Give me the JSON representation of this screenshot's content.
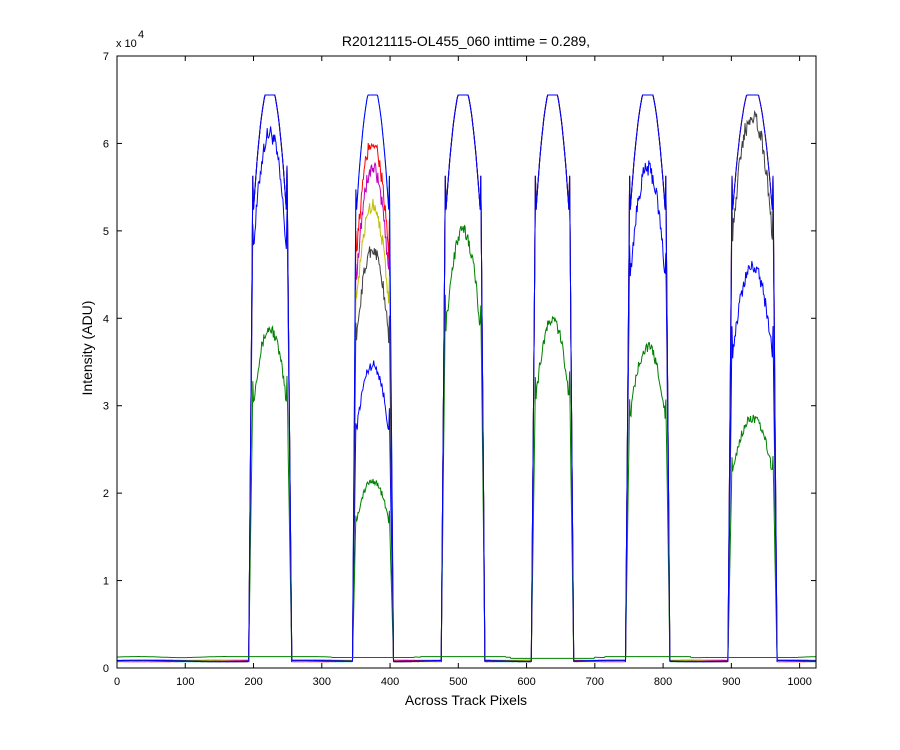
{
  "chart_data": {
    "type": "line",
    "title": "R20121115-OL455_060 inttime = 0.289,",
    "xlabel": "Across Track Pixels",
    "ylabel": "Intensity (ADU)",
    "xlim": [
      0,
      1024
    ],
    "ylim": [
      0,
      70000
    ],
    "y_exponent_label": "x 10",
    "y_exponent_power": "4",
    "x_ticks": [
      0,
      100,
      200,
      300,
      400,
      500,
      600,
      700,
      800,
      900,
      1000
    ],
    "x_tick_labels": [
      "0",
      "100",
      "200",
      "300",
      "400",
      "500",
      "600",
      "700",
      "800",
      "900",
      "1000"
    ],
    "y_ticks": [
      0,
      10000,
      20000,
      30000,
      40000,
      50000,
      60000,
      70000
    ],
    "y_tick_labels": [
      "0",
      "1",
      "2",
      "3",
      "4",
      "5",
      "6",
      "7"
    ],
    "grid": false,
    "baseline": 800,
    "saturation": 65535,
    "bands": [
      {
        "edges": [
          193,
          200,
          248,
          256
        ]
      },
      {
        "edges": [
          345,
          351,
          398,
          405
        ]
      },
      {
        "edges": [
          475,
          482,
          532,
          539
        ]
      },
      {
        "edges": [
          607,
          614,
          662,
          669
        ]
      },
      {
        "edges": [
          745,
          752,
          803,
          810
        ]
      },
      {
        "edges": [
          895,
          902,
          960,
          967
        ]
      }
    ],
    "series": [
      {
        "color": "#0000ff",
        "peaks": [
          60000,
          34000,
          65535,
          65535,
          56000,
          45000
        ]
      },
      {
        "color": "#008000",
        "peaks": [
          38000,
          21000,
          49000,
          39000,
          36000,
          28000
        ]
      },
      {
        "color": "#00bfbf",
        "peaks": [
          65535,
          65535,
          65535,
          65535,
          65535,
          65535
        ]
      },
      {
        "color": "#ff0000",
        "peaks": [
          65535,
          59000,
          65535,
          65535,
          65535,
          65535
        ]
      },
      {
        "color": "#bf00bf",
        "peaks": [
          65535,
          56000,
          65535,
          65535,
          65535,
          65535
        ]
      },
      {
        "color": "#bfbf00",
        "peaks": [
          65535,
          52000,
          65535,
          65535,
          65535,
          65535
        ]
      },
      {
        "color": "#404040",
        "peaks": [
          65535,
          47000,
          65535,
          65535,
          65535,
          62000
        ]
      },
      {
        "color": "#0000ff",
        "peaks": [
          65535,
          65535,
          65535,
          65535,
          65535,
          65535
        ]
      },
      {
        "color": "#008000",
        "peaks": [
          1300,
          1200,
          1300,
          1100,
          1300,
          1200
        ]
      }
    ]
  }
}
